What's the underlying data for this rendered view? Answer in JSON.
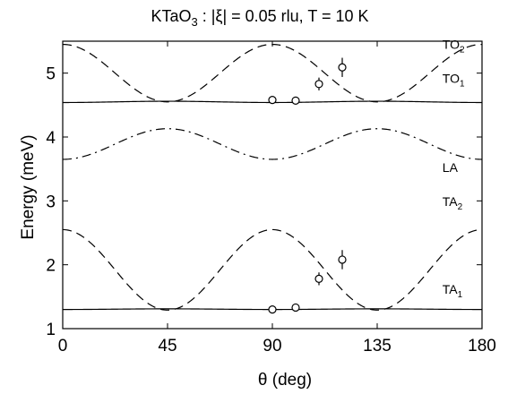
{
  "chart_data": {
    "type": "line",
    "title_main": "KTaO",
    "title_sub": "3",
    "title_rest": " : |ξ| = 0.05 rlu, T = 10 K",
    "xlabel": "θ (deg)",
    "ylabel": "Energy (meV)",
    "xlim": [
      0,
      180
    ],
    "ylim": [
      1,
      5.5
    ],
    "xticks": [
      0,
      45,
      90,
      135,
      180
    ],
    "yticks": [
      1,
      2,
      3,
      4,
      5
    ],
    "grid": false,
    "colors": {
      "line": "#000000",
      "background": "#ffffff"
    },
    "series": [
      {
        "branch": "TO2",
        "style": "dashed",
        "model": "a+b*cos(4*theta)",
        "params": {
          "a": 5.0,
          "b": 0.45
        }
      },
      {
        "branch": "TO1",
        "style": "solid",
        "model": "a-b*cos(4*theta)-c*sin^2(2*theta)",
        "params": {
          "a": 4.88,
          "b": 0.34,
          "c": 0.66
        }
      },
      {
        "branch": "LA",
        "style": "dash-dot",
        "model": "a-b*cos(4*theta)",
        "params": {
          "a": 3.89,
          "b": 0.24
        }
      },
      {
        "branch": "TA2",
        "style": "dashed",
        "model": "a+b*cos(4*theta)",
        "params": {
          "a": 1.92,
          "b": 0.63
        }
      },
      {
        "branch": "TA1",
        "style": "solid",
        "model": "a-b*cos(4*theta)-c*sin^2(2*theta)",
        "params": {
          "a": 1.81,
          "b": 0.51,
          "c": 1.01
        }
      }
    ],
    "points": [
      {
        "x": 90,
        "y": 4.58,
        "err": 0.04
      },
      {
        "x": 100,
        "y": 4.57,
        "err": 0.05
      },
      {
        "x": 110,
        "y": 4.83,
        "err": 0.1
      },
      {
        "x": 120,
        "y": 5.09,
        "err": 0.15
      },
      {
        "x": 90,
        "y": 1.3,
        "err": 0.04
      },
      {
        "x": 100,
        "y": 1.33,
        "err": 0.05
      },
      {
        "x": 110,
        "y": 1.78,
        "err": 0.1
      },
      {
        "x": 120,
        "y": 2.08,
        "err": 0.15
      }
    ],
    "labels": [
      {
        "main": "TO",
        "sub": "2",
        "x": 163,
        "y": 5.38
      },
      {
        "main": "TO",
        "sub": "1",
        "x": 163,
        "y": 4.85
      },
      {
        "main": "LA",
        "sub": "",
        "x": 163,
        "y": 3.45
      },
      {
        "main": "TA",
        "sub": "2",
        "x": 163,
        "y": 2.92
      },
      {
        "main": "TA",
        "sub": "1",
        "x": 163,
        "y": 1.55
      }
    ]
  }
}
